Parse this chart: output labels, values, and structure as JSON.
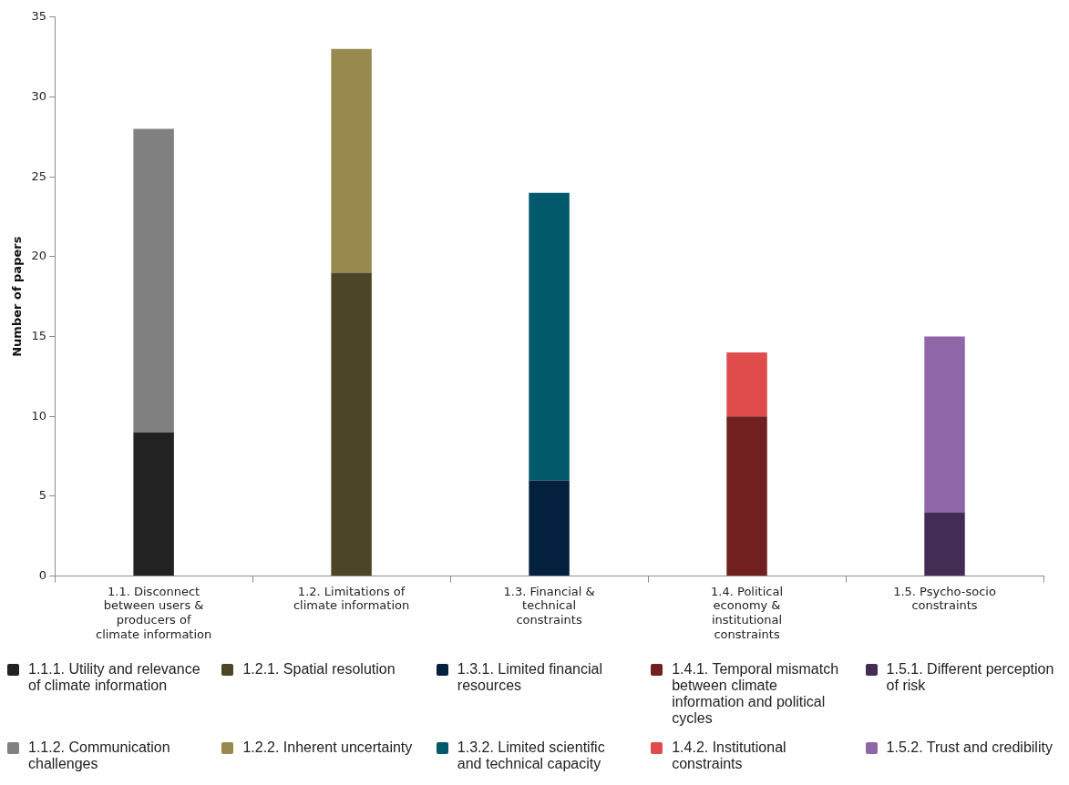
{
  "chart_data": {
    "type": "bar",
    "stacked": true,
    "ylabel": "Number of papers",
    "ylim": [
      0,
      35
    ],
    "yticks": [
      0,
      5,
      10,
      15,
      20,
      25,
      30,
      35
    ],
    "grid": false,
    "legend": "bottom",
    "categories": [
      "1.1. Disconnect between users & producers of climate information",
      "1.2. Limitations of climate information",
      "1.3. Financial & technical constraints",
      "1.4. Political economy & institutional constraints",
      "1.5. Psycho-socio constraints"
    ],
    "series": [
      {
        "name": "1.1.1. Utility and relevance of climate information",
        "color": "#222222",
        "values": [
          9,
          null,
          null,
          null,
          null
        ]
      },
      {
        "name": "1.1.2. Communication challenges",
        "color": "#808080",
        "values": [
          19,
          null,
          null,
          null,
          null
        ]
      },
      {
        "name": "1.2.1. Spatial resolution",
        "color": "#4c4526",
        "values": [
          null,
          19,
          null,
          null,
          null
        ]
      },
      {
        "name": "1.2.2. Inherent uncertainty",
        "color": "#98894f",
        "values": [
          null,
          14,
          null,
          null,
          null
        ]
      },
      {
        "name": "1.3.1. Limited financial resources",
        "color": "#03203f",
        "values": [
          null,
          null,
          6,
          null,
          null
        ]
      },
      {
        "name": "1.3.2. Limited scientific and technical capacity",
        "color": "#005a6b",
        "values": [
          null,
          null,
          18,
          null,
          null
        ]
      },
      {
        "name": "1.4.1. Temporal mismatch between climate information and political cycles",
        "color": "#721f1f",
        "values": [
          null,
          null,
          null,
          10,
          null
        ]
      },
      {
        "name": "1.4.2. Institutional constraints",
        "color": "#e04b4b",
        "values": [
          null,
          null,
          null,
          4,
          null
        ]
      },
      {
        "name": "1.5.1. Different perception of risk",
        "color": "#432d55",
        "values": [
          null,
          null,
          null,
          null,
          4
        ]
      },
      {
        "name": "1.5.2. Trust and credibility",
        "color": "#8f67a8",
        "values": [
          null,
          null,
          null,
          null,
          11
        ]
      }
    ]
  }
}
